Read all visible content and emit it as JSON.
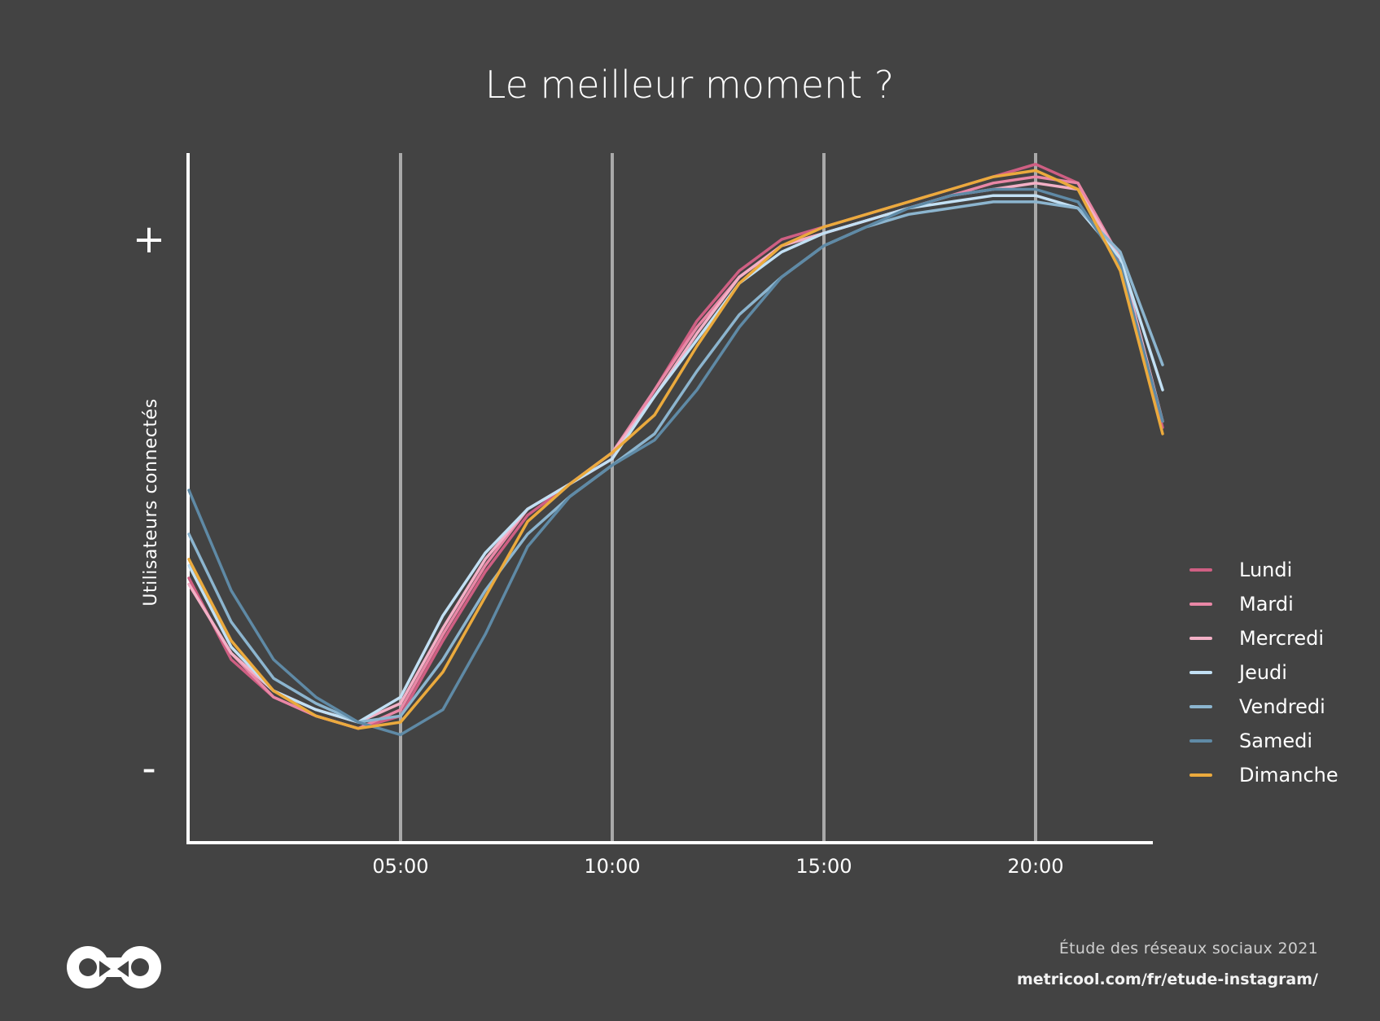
{
  "chart_data": {
    "type": "line",
    "title": "Le meilleur moment ?",
    "xlabel": "",
    "ylabel": "Utilisateurs connectés",
    "y_high_label": "+",
    "y_low_label": "-",
    "x_ticks": [
      {
        "hour": 5,
        "label": "05:00"
      },
      {
        "hour": 10,
        "label": "10:00"
      },
      {
        "hour": 15,
        "label": "15:00"
      },
      {
        "hour": 20,
        "label": "20:00"
      }
    ],
    "xlim": [
      0,
      23
    ],
    "ylim": [
      0,
      100
    ],
    "grid": "vertical",
    "legend_position": "right",
    "x": [
      0,
      1,
      2,
      3,
      4,
      5,
      6,
      7,
      8,
      9,
      10,
      11,
      12,
      13,
      14,
      15,
      16,
      17,
      18,
      19,
      20,
      21,
      22,
      23
    ],
    "series": [
      {
        "name": "Lundi",
        "color": "#cf5f83",
        "values": [
          33,
          20,
          14,
          11,
          9,
          11,
          23,
          34,
          43,
          48,
          52,
          63,
          74,
          82,
          87,
          89,
          91,
          93,
          95,
          97,
          99,
          96,
          83,
          57
        ]
      },
      {
        "name": "Mardi",
        "color": "#e987a6",
        "values": [
          32,
          21,
          14,
          11,
          9,
          12,
          24,
          35,
          44,
          48,
          53,
          63,
          73,
          81,
          86,
          88,
          90,
          92,
          94,
          96,
          97,
          96,
          84,
          58
        ]
      },
      {
        "name": "Mercredi",
        "color": "#f3b0c6",
        "values": [
          32,
          21,
          15,
          12,
          10,
          13,
          25,
          36,
          44,
          48,
          53,
          62,
          72,
          81,
          86,
          88,
          90,
          92,
          94,
          95,
          96,
          95,
          84,
          58
        ]
      },
      {
        "name": "Jeudi",
        "color": "#c2e0f4",
        "values": [
          35,
          22,
          15,
          12,
          10,
          14,
          27,
          37,
          44,
          48,
          52,
          62,
          71,
          80,
          85,
          88,
          90,
          92,
          93,
          94,
          94,
          92,
          84,
          63
        ]
      },
      {
        "name": "Vendredi",
        "color": "#8cb5cf",
        "values": [
          40,
          26,
          17,
          13,
          10,
          11,
          20,
          31,
          40,
          46,
          51,
          56,
          66,
          75,
          81,
          86,
          89,
          91,
          92,
          93,
          93,
          92,
          85,
          67
        ]
      },
      {
        "name": "Samedi",
        "color": "#5f8aa6",
        "values": [
          47,
          31,
          20,
          14,
          10,
          8,
          12,
          24,
          38,
          46,
          51,
          55,
          63,
          73,
          81,
          86,
          89,
          92,
          94,
          95,
          95,
          93,
          83,
          58
        ]
      },
      {
        "name": "Dimanche",
        "color": "#ebaa3d",
        "values": [
          36,
          23,
          15,
          11,
          9,
          10,
          18,
          30,
          42,
          48,
          53,
          59,
          70,
          80,
          86,
          89,
          91,
          93,
          95,
          97,
          98,
          95,
          82,
          56
        ]
      }
    ]
  },
  "footer": {
    "study": "Étude des réseaux sociaux 2021",
    "url": "metricool.com/fr/etude-instagram/"
  },
  "logo": {
    "icon": "metricool-infinity-logo"
  }
}
